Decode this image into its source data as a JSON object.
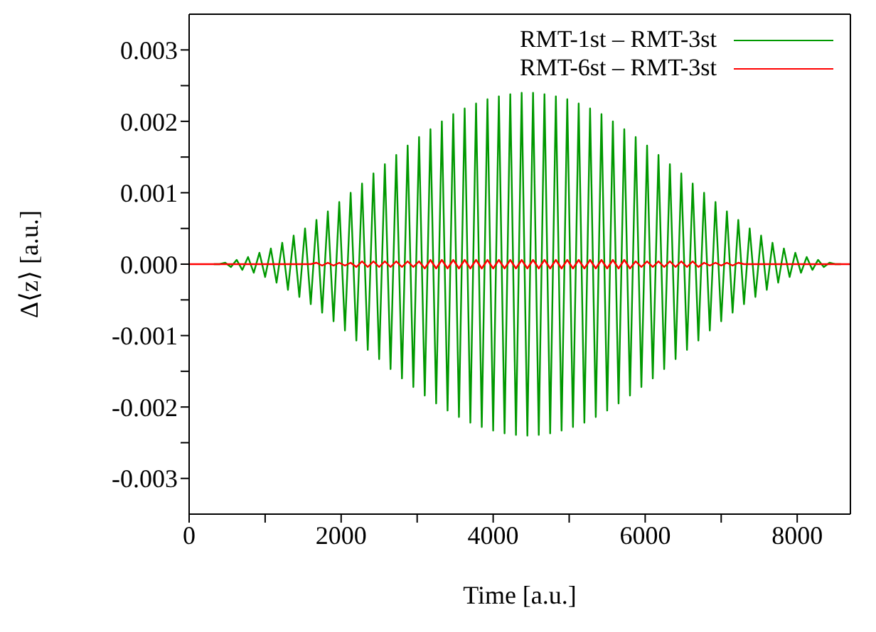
{
  "chart_data": {
    "type": "line",
    "xlabel": "Time [a.u.]",
    "ylabel": "Δ⟨z⟩ [a.u.]",
    "legend": "top right",
    "marker": "none",
    "line_style": "solid",
    "xlim": [
      0,
      8700
    ],
    "ylim": [
      -0.0035,
      0.0035
    ],
    "xticks": [
      0,
      {
        "value": 1000,
        "label": null
      },
      2000,
      {
        "value": 3000,
        "label": null
      },
      4000,
      {
        "value": 5000,
        "label": null
      },
      6000,
      {
        "value": 7000,
        "label": null
      },
      8000
    ],
    "yticks": [
      {
        "value": -0.003,
        "label": "-0.003"
      },
      {
        "value": -0.0025,
        "label": null
      },
      {
        "value": -0.002,
        "label": "-0.002"
      },
      {
        "value": -0.0015,
        "label": null
      },
      {
        "value": -0.001,
        "label": "-0.001"
      },
      {
        "value": -0.0005,
        "label": null
      },
      {
        "value": 0,
        "label": "0.000"
      },
      {
        "value": 0.0005,
        "label": null
      },
      {
        "value": 0.001,
        "label": "0.001"
      },
      {
        "value": 0.0015,
        "label": null
      },
      {
        "value": 0.002,
        "label": "0.002"
      },
      {
        "value": 0.0025,
        "label": null
      },
      {
        "value": 0.003,
        "label": "0.003"
      }
    ],
    "x": [
      0,
      250,
      325,
      400,
      475,
      550,
      625,
      700,
      775,
      850,
      925,
      1000,
      1075,
      1150,
      1225,
      1300,
      1375,
      1450,
      1525,
      1600,
      1675,
      1750,
      1825,
      1900,
      1975,
      2050,
      2125,
      2200,
      2275,
      2350,
      2425,
      2500,
      2575,
      2650,
      2725,
      2800,
      2875,
      2950,
      3025,
      3100,
      3175,
      3250,
      3325,
      3400,
      3475,
      3550,
      3625,
      3700,
      3775,
      3850,
      3925,
      4000,
      4075,
      4150,
      4225,
      4300,
      4375,
      4450,
      4525,
      4600,
      4675,
      4750,
      4825,
      4900,
      4975,
      5050,
      5125,
      5200,
      5275,
      5350,
      5425,
      5500,
      5575,
      5650,
      5725,
      5800,
      5875,
      5950,
      6025,
      6100,
      6175,
      6250,
      6325,
      6400,
      6475,
      6550,
      6625,
      6700,
      6775,
      6850,
      6925,
      7000,
      7075,
      7150,
      7225,
      7300,
      7375,
      7450,
      7525,
      7600,
      7675,
      7750,
      7825,
      7900,
      7975,
      8050,
      8125,
      8200,
      8275,
      8350,
      8425,
      8500,
      8575,
      8650,
      8700
    ],
    "series": [
      {
        "name": "RMT-1st – RMT-3st",
        "color": "#009900",
        "values": [
          null,
          null,
          0,
          0,
          2e-05,
          -4e-05,
          6e-05,
          -8e-05,
          0.0001,
          -0.00012,
          0.00016,
          -0.00018,
          0.00022,
          -0.00026,
          0.0003,
          -0.00036,
          0.0004,
          -0.00046,
          0.0005,
          -0.00056,
          0.00062,
          -0.00068,
          0.00074,
          -0.0008,
          0.00087,
          -0.00093,
          0.001,
          -0.00107,
          0.00113,
          -0.0012,
          0.00127,
          -0.00133,
          0.0014,
          -0.00147,
          0.00153,
          -0.0016,
          0.00166,
          -0.00172,
          0.00178,
          -0.00184,
          0.00189,
          -0.00195,
          0.002,
          -0.00205,
          0.0021,
          -0.00214,
          0.00218,
          -0.00222,
          0.00225,
          -0.00228,
          0.00231,
          -0.00233,
          0.00235,
          -0.00237,
          0.00238,
          -0.00239,
          0.0024,
          -0.0024,
          0.0024,
          -0.00239,
          0.00238,
          -0.00237,
          0.00235,
          -0.00233,
          0.00231,
          -0.00228,
          0.00225,
          -0.00222,
          0.00218,
          -0.00214,
          0.0021,
          -0.00205,
          0.002,
          -0.00195,
          0.00189,
          -0.00184,
          0.00178,
          -0.00172,
          0.00166,
          -0.0016,
          0.00153,
          -0.00147,
          0.0014,
          -0.00133,
          0.00127,
          -0.0012,
          0.00113,
          -0.00107,
          0.001,
          -0.00093,
          0.00087,
          -0.0008,
          0.00074,
          -0.00068,
          0.00062,
          -0.00056,
          0.0005,
          -0.00046,
          0.0004,
          -0.00036,
          0.0003,
          -0.00026,
          0.00022,
          -0.00018,
          0.00016,
          -0.00012,
          0.0001,
          -8e-05,
          6e-05,
          -4e-05,
          2e-05,
          0,
          0,
          null,
          null
        ]
      },
      {
        "name": "RMT-6st – RMT-3st",
        "color": "#ff0000",
        "values": [
          0,
          0,
          0,
          0,
          0,
          0,
          0,
          0,
          0,
          0,
          0,
          0,
          0,
          0,
          0,
          0,
          0,
          0,
          0,
          0,
          2e-05,
          -2e-05,
          2e-05,
          -2e-05,
          2e-05,
          -2e-05,
          2e-05,
          -4e-05,
          4e-05,
          -4e-05,
          4e-05,
          -4e-05,
          4e-05,
          -4e-05,
          4e-05,
          -4e-05,
          4e-05,
          -4e-05,
          4e-05,
          -6e-05,
          6e-05,
          -6e-05,
          6e-05,
          -6e-05,
          6e-05,
          -6e-05,
          6e-05,
          -6e-05,
          6e-05,
          -6e-05,
          6e-05,
          -6e-05,
          6e-05,
          -6e-05,
          6e-05,
          -6e-05,
          6e-05,
          -6e-05,
          6e-05,
          -6e-05,
          6e-05,
          -6e-05,
          6e-05,
          -6e-05,
          6e-05,
          -6e-05,
          6e-05,
          -6e-05,
          6e-05,
          -6e-05,
          6e-05,
          -6e-05,
          6e-05,
          -6e-05,
          6e-05,
          -6e-05,
          4e-05,
          -4e-05,
          4e-05,
          -4e-05,
          4e-05,
          -4e-05,
          4e-05,
          -4e-05,
          4e-05,
          -4e-05,
          4e-05,
          -4e-05,
          2e-05,
          -2e-05,
          2e-05,
          -2e-05,
          2e-05,
          -2e-05,
          2e-05,
          0,
          0,
          0,
          0,
          0,
          0,
          0,
          0,
          0,
          0,
          0,
          0,
          0,
          0,
          0,
          0,
          0,
          0,
          0,
          0
        ]
      }
    ]
  }
}
